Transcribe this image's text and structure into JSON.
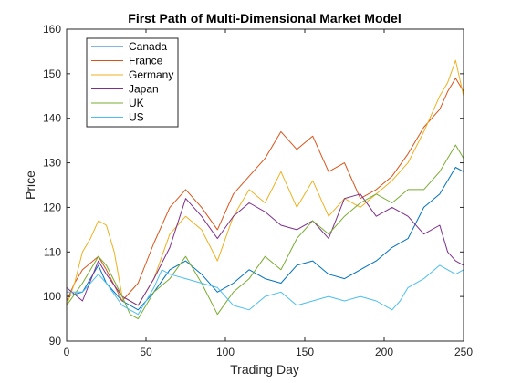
{
  "chart_data": {
    "type": "line",
    "title": "First Path of Multi-Dimensional Market Model",
    "xlabel": "Trading Day",
    "ylabel": "Price",
    "xlim": [
      0,
      250
    ],
    "ylim": [
      90,
      160
    ],
    "xticks": [
      "0",
      "50",
      "100",
      "150",
      "200",
      "250"
    ],
    "yticks": [
      "90",
      "100",
      "110",
      "120",
      "130",
      "140",
      "150",
      "160"
    ],
    "grid": false,
    "legend_position": "top-left",
    "series": [
      {
        "name": "Canada",
        "color": "#0072BD",
        "x": [
          0,
          10,
          20,
          25,
          35,
          45,
          55,
          65,
          75,
          85,
          95,
          105,
          115,
          125,
          135,
          145,
          155,
          165,
          175,
          185,
          195,
          205,
          215,
          225,
          235,
          245,
          250
        ],
        "y": [
          100,
          101,
          107,
          103,
          99,
          97,
          101,
          106,
          108,
          105,
          101,
          103,
          106,
          104,
          103,
          107,
          108,
          105,
          104,
          106,
          108,
          111,
          113,
          120,
          123,
          129,
          128
        ]
      },
      {
        "name": "France",
        "color": "#D95319",
        "x": [
          0,
          5,
          10,
          20,
          25,
          35,
          45,
          55,
          65,
          75,
          85,
          95,
          105,
          115,
          125,
          135,
          145,
          155,
          165,
          175,
          185,
          195,
          205,
          215,
          225,
          235,
          240,
          245,
          250
        ],
        "y": [
          99,
          103,
          106,
          109,
          106,
          99,
          103,
          112,
          120,
          124,
          120,
          115,
          123,
          127,
          131,
          137,
          133,
          136,
          128,
          130,
          122,
          124,
          127,
          132,
          138,
          142,
          146,
          149,
          146
        ]
      },
      {
        "name": "Germany",
        "color": "#EDB120",
        "x": [
          0,
          5,
          10,
          15,
          20,
          25,
          30,
          35,
          45,
          55,
          65,
          75,
          85,
          95,
          105,
          115,
          125,
          135,
          145,
          155,
          165,
          175,
          185,
          195,
          205,
          215,
          225,
          235,
          240,
          245,
          250
        ],
        "y": [
          98,
          103,
          110,
          113,
          117,
          116,
          110,
          100,
          98,
          104,
          114,
          118,
          115,
          108,
          118,
          124,
          121,
          128,
          120,
          126,
          118,
          122,
          120,
          123,
          126,
          130,
          137,
          145,
          148,
          153,
          145
        ]
      },
      {
        "name": "Japan",
        "color": "#7E2F8E",
        "x": [
          0,
          10,
          20,
          25,
          35,
          45,
          55,
          65,
          75,
          85,
          95,
          105,
          115,
          125,
          135,
          145,
          155,
          165,
          175,
          185,
          195,
          205,
          215,
          225,
          235,
          240,
          245,
          250
        ],
        "y": [
          102,
          99,
          108,
          105,
          100,
          98,
          104,
          111,
          122,
          118,
          113,
          118,
          121,
          119,
          116,
          115,
          117,
          113,
          122,
          123,
          118,
          120,
          118,
          114,
          116,
          110,
          108,
          107
        ]
      },
      {
        "name": "UK",
        "color": "#77AC30",
        "x": [
          0,
          10,
          20,
          25,
          35,
          40,
          45,
          55,
          65,
          75,
          85,
          95,
          105,
          115,
          125,
          135,
          145,
          155,
          165,
          175,
          185,
          195,
          205,
          215,
          225,
          235,
          245,
          250
        ],
        "y": [
          98,
          103,
          109,
          107,
          100,
          96,
          95,
          101,
          104,
          109,
          103,
          96,
          101,
          104,
          109,
          106,
          113,
          117,
          114,
          118,
          121,
          123,
          121,
          124,
          124,
          128,
          134,
          131
        ]
      },
      {
        "name": "US",
        "color": "#4DBEEE",
        "x": [
          0,
          10,
          20,
          25,
          35,
          45,
          55,
          60,
          65,
          75,
          85,
          95,
          105,
          115,
          125,
          135,
          145,
          155,
          165,
          175,
          185,
          195,
          205,
          210,
          215,
          225,
          235,
          245,
          250
        ],
        "y": [
          101,
          101,
          105,
          103,
          98,
          96,
          102,
          106,
          105,
          104,
          103,
          102,
          98,
          97,
          100,
          101,
          98,
          99,
          100,
          99,
          100,
          99,
          97,
          99,
          102,
          104,
          107,
          105,
          106
        ]
      }
    ]
  }
}
